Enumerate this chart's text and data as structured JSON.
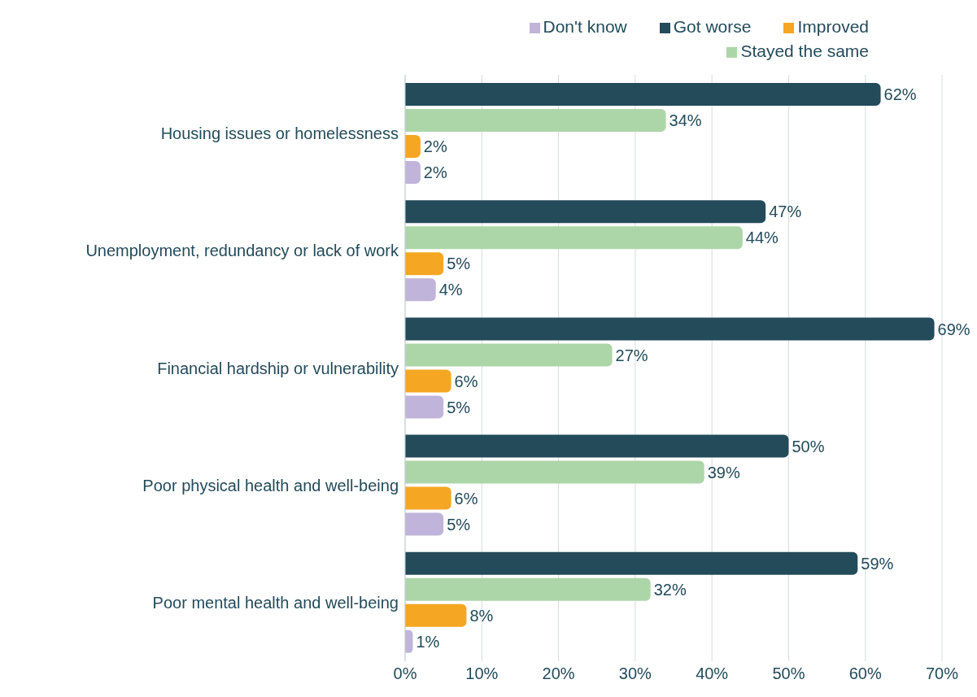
{
  "chart_data": {
    "type": "bar",
    "orientation": "horizontal",
    "categories": [
      "Housing issues or homelessness",
      "Unemployment, redundancy or lack of work",
      "Financial hardship or vulnerability",
      "Poor physical health and well-being",
      "Poor mental health and well-being"
    ],
    "series": [
      {
        "name": "Got worse",
        "color": "#234b5a",
        "values": [
          62,
          47,
          69,
          50,
          59
        ],
        "value_labels": [
          "62%",
          "47%",
          "69%",
          "50%",
          "59%"
        ]
      },
      {
        "name": "Stayed the same",
        "color": "#add6a8",
        "values": [
          34,
          44,
          27,
          39,
          32
        ],
        "value_labels": [
          "34%",
          "44%",
          "27%",
          "39%",
          "32%"
        ]
      },
      {
        "name": "Improved",
        "color": "#f5a623",
        "values": [
          2,
          5,
          6,
          6,
          8
        ],
        "value_labels": [
          "2%",
          "5%",
          "6%",
          "6%",
          "8%"
        ]
      },
      {
        "name": "Don't know",
        "color": "#c0b4da",
        "values": [
          2,
          4,
          5,
          5,
          1
        ],
        "value_labels": [
          "2%",
          "4%",
          "5%",
          "5%",
          "1%"
        ]
      }
    ],
    "xlim": [
      0,
      70
    ],
    "xticks": [
      {
        "value": 0,
        "label": "0%"
      },
      {
        "value": 10,
        "label": "10%"
      },
      {
        "value": 20,
        "label": "20%"
      },
      {
        "value": 30,
        "label": "30%"
      },
      {
        "value": 40,
        "label": "40%"
      },
      {
        "value": 50,
        "label": "50%"
      },
      {
        "value": 60,
        "label": "60%"
      },
      {
        "value": 70,
        "label": "70%"
      }
    ],
    "grid": "x",
    "legend": "top right"
  }
}
